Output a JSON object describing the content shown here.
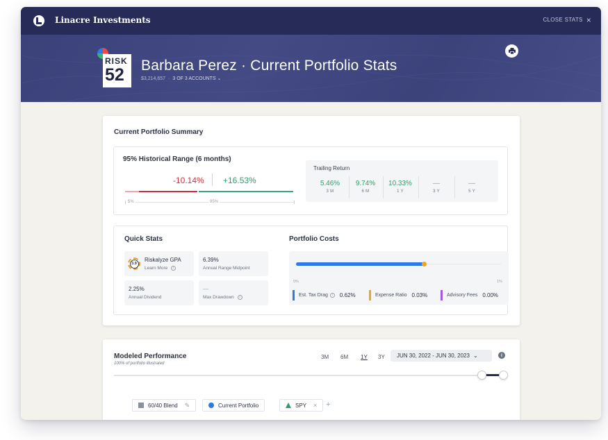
{
  "topbar": {
    "brand": "Linacre Investments",
    "close_label": "CLOSE STATS",
    "close_icon": "×"
  },
  "hero": {
    "risk_label": "RISK",
    "risk_score": "52",
    "title": "Barbara Perez · Current Portfolio Stats",
    "total_value": "$3,214,657",
    "separator": "·",
    "accounts_label": "3 OF 3 ACCOUNTS",
    "accounts_chevron": "⌄"
  },
  "summary": {
    "title": "Current Portfolio Summary",
    "range": {
      "title": "95% Historical Range (6 months)",
      "low": "-10.14%",
      "high": "+16.53%",
      "scale_low": "5%",
      "scale_mid": "95%"
    },
    "trailing": {
      "title": "Trailing Return",
      "items": [
        {
          "value": "5.46%",
          "period": "3 M"
        },
        {
          "value": "9.74%",
          "period": "6 M"
        },
        {
          "value": "10.33%",
          "period": "1 Y"
        },
        {
          "value": "—",
          "period": "3 Y"
        },
        {
          "value": "—",
          "period": "5 Y"
        }
      ]
    }
  },
  "quick_stats": {
    "title": "Quick Stats",
    "gpa": {
      "badge": "3.9",
      "label": "Riskalyze GPA",
      "link": "Learn More"
    },
    "midpoint": {
      "value": "6.39%",
      "label": "Annual Range Midpoint"
    },
    "dividend": {
      "value": "2.25%",
      "label": "Annual Dividend"
    },
    "drawdown": {
      "value": "—",
      "label": "Max Drawdown"
    }
  },
  "costs": {
    "title": "Portfolio Costs",
    "bar_fraction": 0.62,
    "axis_min": "0%",
    "axis_max": "1%",
    "legend": [
      {
        "label": "Est. Tax Drag",
        "value": "0.62%",
        "color": "#2c7be5"
      },
      {
        "label": "Expense Ratio",
        "value": "0.03%",
        "color": "#f0a22a"
      },
      {
        "label": "Advisory Fees",
        "value": "0.00%",
        "color": "#a05ce0"
      }
    ]
  },
  "modeled": {
    "title": "Modeled Performance",
    "subtitle": "100% of portfolio illustrated",
    "periods": [
      "3M",
      "6M",
      "1Y",
      "3Y"
    ],
    "active_period": "1Y",
    "date_range": "JUN 30, 2022 - JUN 30, 2023",
    "info": "i",
    "chips": [
      {
        "label": "60/40 Blend",
        "action": "✎"
      },
      {
        "label": "Current Portfolio"
      },
      {
        "label": "SPY",
        "action": "×"
      }
    ],
    "add": "+"
  }
}
